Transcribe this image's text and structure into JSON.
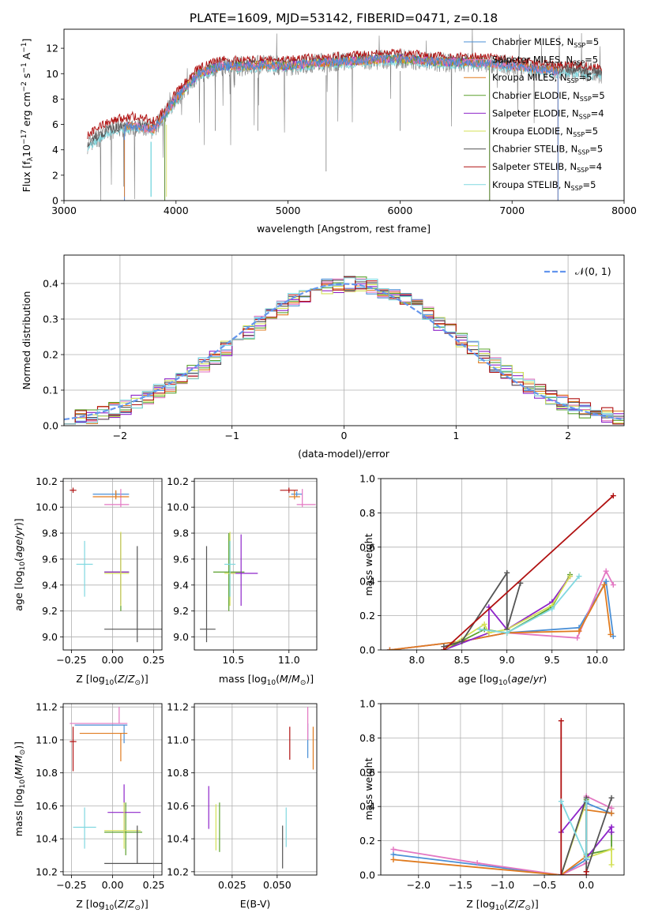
{
  "title": "PLATE=1609, MJD=53142, FIBERID=0471, z=0.18",
  "colors": {
    "Chabrier MILES": "#4a8fd6",
    "Salpeter MILES": "#e377c2",
    "Kroupa MILES": "#e07b1f",
    "Chabrier ELODIE": "#5aa02c",
    "Salpeter ELODIE": "#8e24c9",
    "Kroupa ELODIE": "#d4e157",
    "Chabrier STELIB": "#555555",
    "Salpeter STELIB": "#b01010",
    "Kroupa STELIB": "#80d8e0"
  },
  "legend_spectrum": [
    {
      "model": "Chabrier MILES",
      "lib": "Chabrier MILES, N",
      "sub": "SSP",
      "eq": "=5"
    },
    {
      "model": "Salpeter MILES",
      "lib": "Salpeter MILES, N",
      "sub": "SSP",
      "eq": "=5"
    },
    {
      "model": "Kroupa MILES",
      "lib": "Kroupa MILES, N",
      "sub": "SSP",
      "eq": "=5"
    },
    {
      "model": "Chabrier ELODIE",
      "lib": "Chabrier ELODIE, N",
      "sub": "SSP",
      "eq": "=5"
    },
    {
      "model": "Salpeter ELODIE",
      "lib": "Salpeter ELODIE, N",
      "sub": "SSP",
      "eq": "=4"
    },
    {
      "model": "Kroupa ELODIE",
      "lib": "Kroupa ELODIE, N",
      "sub": "SSP",
      "eq": "=5"
    },
    {
      "model": "Chabrier STELIB",
      "lib": "Chabrier STELIB, N",
      "sub": "SSP",
      "eq": "=5"
    },
    {
      "model": "Salpeter STELIB",
      "lib": "Salpeter STELIB, N",
      "sub": "SSP",
      "eq": "=4"
    },
    {
      "model": "Kroupa STELIB",
      "lib": "Kroupa STELIB, N",
      "sub": "SSP",
      "eq": "=5"
    }
  ],
  "chart_data": [
    {
      "id": "spectrum",
      "type": "line",
      "xlabel": "wavelength [Angstrom, rest frame]",
      "ylabel": "Flux [f",
      "xlim": [
        3000,
        8000
      ],
      "ylim": [
        0,
        13.5
      ],
      "xticks": [
        3000,
        4000,
        5000,
        6000,
        7000,
        8000
      ],
      "yticks": [
        0,
        2,
        4,
        6,
        8,
        10,
        12
      ],
      "continuum_x": [
        3200,
        3400,
        3600,
        3800,
        4000,
        4200,
        4400,
        4600,
        4800,
        5000,
        5200,
        5400,
        5600,
        5800,
        6000,
        6200,
        6400,
        6600,
        6800,
        7000,
        7200,
        7400,
        7600,
        7800
      ],
      "continuum_y": [
        4.4,
        5.5,
        5.9,
        5.6,
        8.0,
        10.0,
        10.6,
        10.6,
        10.7,
        10.6,
        10.8,
        10.9,
        11.0,
        11.1,
        11.2,
        11.0,
        10.9,
        10.9,
        10.8,
        10.6,
        10.4,
        10.2,
        10.2,
        10.0
      ]
    },
    {
      "id": "residuals",
      "type": "histogram",
      "xlabel": "(data-model)/error",
      "ylabel": "Normed distribution",
      "xlim": [
        -2.5,
        2.5
      ],
      "ylim": [
        0,
        0.48
      ],
      "xticks": [
        -2,
        -1,
        0,
        1,
        2
      ],
      "yticks": [
        0.0,
        0.1,
        0.2,
        0.3,
        0.4
      ],
      "gaussian_label": "𝒩(0, 1)",
      "gaussian_color": "#6495ed",
      "bin_width": 0.1,
      "bin_start": -2.5,
      "gauss_values": [
        0.0175,
        0.0224,
        0.0283,
        0.0355,
        0.044,
        0.054,
        0.0656,
        0.079,
        0.094,
        0.111,
        0.1295,
        0.1497,
        0.1714,
        0.1942,
        0.2179,
        0.242,
        0.266,
        0.2897,
        0.3123,
        0.3332,
        0.3521,
        0.3683,
        0.3814,
        0.391,
        0.397,
        0.3989,
        0.397,
        0.391,
        0.3814,
        0.3683,
        0.3521,
        0.3332,
        0.3123,
        0.2897,
        0.266,
        0.242,
        0.2179,
        0.1942,
        0.1714,
        0.1497,
        0.1295,
        0.111,
        0.094,
        0.079,
        0.0656,
        0.054,
        0.044,
        0.0355,
        0.0283,
        0.0224
      ]
    },
    {
      "id": "age-vs-Z",
      "type": "scatter",
      "xlabel": "Z [log",
      "ylabel": "age  [log",
      "xlim": [
        -0.3,
        0.3
      ],
      "ylim": [
        8.9,
        10.22
      ],
      "xticks": [
        -0.25,
        0.0,
        0.25
      ],
      "yticks": [
        9.0,
        9.2,
        9.4,
        9.6,
        9.8,
        10.0,
        10.2
      ],
      "points": [
        {
          "model": "Chabrier MILES",
          "x": 0.02,
          "y": 10.1,
          "xe": [
            0.14,
            0.08
          ],
          "ye": [
            0.02,
            0.02
          ]
        },
        {
          "model": "Salpeter MILES",
          "x": 0.05,
          "y": 10.02,
          "xe": [
            0.1,
            0.05
          ],
          "ye": [
            0.02,
            0.12
          ]
        },
        {
          "model": "Kroupa MILES",
          "x": 0.02,
          "y": 10.08,
          "xe": [
            0.14,
            0.08
          ],
          "ye": [
            0.02,
            0.05
          ]
        },
        {
          "model": "Chabrier ELODIE",
          "x": 0.05,
          "y": 9.5,
          "xe": [
            0.1,
            0.05
          ],
          "ye": [
            0.3,
            0.3
          ]
        },
        {
          "model": "Salpeter ELODIE",
          "x": 0.05,
          "y": 9.5,
          "xe": [
            0.1,
            0.05
          ],
          "ye": [
            0.25,
            0.3
          ]
        },
        {
          "model": "Kroupa ELODIE",
          "x": 0.05,
          "y": 9.49,
          "xe": [
            0.1,
            0.05
          ],
          "ye": [
            0.25,
            0.32
          ]
        },
        {
          "model": "Chabrier STELIB",
          "x": 0.15,
          "y": 9.06,
          "xe": [
            0.2,
            0.15
          ],
          "ye": [
            0.1,
            0.64
          ]
        },
        {
          "model": "Salpeter STELIB",
          "x": -0.24,
          "y": 10.13,
          "xe": [
            0.02,
            0.02
          ],
          "ye": [
            0.02,
            0.02
          ]
        },
        {
          "model": "Kroupa STELIB",
          "x": -0.17,
          "y": 9.56,
          "xe": [
            0.05,
            0.05
          ],
          "ye": [
            0.25,
            0.18
          ]
        }
      ]
    },
    {
      "id": "age-vs-mass",
      "type": "scatter",
      "xlabel": "mass [log",
      "ylabel": "",
      "xlim": [
        10.15,
        11.25
      ],
      "ylim": [
        8.9,
        10.22
      ],
      "xticks": [
        10.5,
        11.0
      ],
      "yticks": [
        9.0,
        9.2,
        9.4,
        9.6,
        9.8,
        10.0,
        10.2
      ],
      "points": [
        {
          "model": "Chabrier MILES",
          "x": 11.07,
          "y": 10.1,
          "xe": [
            0.05,
            0.05
          ],
          "ye": [
            0.02,
            0.02
          ]
        },
        {
          "model": "Salpeter MILES",
          "x": 11.12,
          "y": 10.02,
          "xe": [
            0.05,
            0.12
          ],
          "ye": [
            0.02,
            0.12
          ]
        },
        {
          "model": "Kroupa MILES",
          "x": 11.05,
          "y": 10.08,
          "xe": [
            0.05,
            0.05
          ],
          "ye": [
            0.02,
            0.05
          ]
        },
        {
          "model": "Chabrier ELODIE",
          "x": 10.46,
          "y": 9.5,
          "xe": [
            0.14,
            0.14
          ],
          "ye": [
            0.3,
            0.3
          ]
        },
        {
          "model": "Salpeter ELODIE",
          "x": 10.57,
          "y": 9.49,
          "xe": [
            0.1,
            0.15
          ],
          "ye": [
            0.25,
            0.3
          ]
        },
        {
          "model": "Kroupa ELODIE",
          "x": 10.47,
          "y": 9.49,
          "xe": [
            0.05,
            0.05
          ],
          "ye": [
            0.25,
            0.32
          ]
        },
        {
          "model": "Chabrier STELIB",
          "x": 10.26,
          "y": 9.06,
          "xe": [
            0.06,
            0.08
          ],
          "ye": [
            0.1,
            0.64
          ]
        },
        {
          "model": "Salpeter STELIB",
          "x": 11.0,
          "y": 10.13,
          "xe": [
            0.08,
            0.08
          ],
          "ye": [
            0.02,
            0.02
          ]
        },
        {
          "model": "Kroupa STELIB",
          "x": 10.47,
          "y": 9.56,
          "xe": [
            0.05,
            0.05
          ],
          "ye": [
            0.25,
            0.18
          ]
        }
      ]
    },
    {
      "id": "mass-weight-vs-age",
      "type": "line",
      "xlabel": "age  [log",
      "ylabel": "mass weight",
      "xlim": [
        7.6,
        10.3
      ],
      "ylim": [
        0,
        1.0
      ],
      "xticks": [
        8.0,
        8.5,
        9.0,
        9.5,
        10.0
      ],
      "yticks": [
        0.0,
        0.2,
        0.4,
        0.6,
        0.8,
        1.0
      ],
      "series": [
        {
          "model": "Chabrier MILES",
          "x": [
            7.7,
            8.5,
            9.0,
            9.8,
            10.1,
            10.18
          ],
          "y": [
            0.0,
            0.05,
            0.1,
            0.13,
            0.4,
            0.08
          ]
        },
        {
          "model": "Salpeter MILES",
          "x": [
            7.7,
            8.5,
            9.0,
            9.78,
            10.1,
            10.18
          ],
          "y": [
            0.0,
            0.05,
            0.1,
            0.07,
            0.46,
            0.38
          ]
        },
        {
          "model": "Kroupa MILES",
          "x": [
            7.7,
            8.5,
            9.0,
            9.8,
            10.08,
            10.15
          ],
          "y": [
            0.0,
            0.05,
            0.1,
            0.11,
            0.38,
            0.09
          ]
        },
        {
          "model": "Chabrier ELODIE",
          "x": [
            8.3,
            8.75,
            9.0,
            9.5,
            9.7
          ],
          "y": [
            0.0,
            0.12,
            0.1,
            0.25,
            0.44
          ]
        },
        {
          "model": "Salpeter ELODIE",
          "x": [
            8.3,
            8.8,
            8.8,
            9.0,
            9.5,
            9.7
          ],
          "y": [
            0.0,
            0.1,
            0.25,
            0.12,
            0.28,
            0.43
          ]
        },
        {
          "model": "Kroupa ELODIE",
          "x": [
            8.3,
            8.75,
            8.8,
            9.0,
            9.5,
            9.7
          ],
          "y": [
            0.0,
            0.15,
            0.1,
            0.12,
            0.26,
            0.43
          ]
        },
        {
          "model": "Chabrier STELIB",
          "x": [
            8.3,
            8.5,
            9.0,
            9.0,
            9.15
          ],
          "y": [
            0.02,
            0.05,
            0.45,
            0.12,
            0.39
          ]
        },
        {
          "model": "Salpeter STELIB",
          "x": [
            8.3,
            10.18
          ],
          "y": [
            0.0,
            0.9
          ]
        },
        {
          "model": "Kroupa STELIB",
          "x": [
            8.7,
            9.0,
            9.5,
            9.8
          ],
          "y": [
            0.12,
            0.1,
            0.24,
            0.43
          ]
        }
      ]
    },
    {
      "id": "mass-vs-Z",
      "type": "scatter",
      "xlabel": "Z [log",
      "ylabel": "mass [log",
      "xlim": [
        -0.3,
        0.3
      ],
      "ylim": [
        10.18,
        11.22
      ],
      "xticks": [
        -0.25,
        0.0,
        0.25
      ],
      "yticks": [
        10.2,
        10.4,
        10.6,
        10.8,
        11.0,
        11.2
      ],
      "points": [
        {
          "model": "Chabrier MILES",
          "x": 0.07,
          "y": 11.09,
          "xe": [
            0.3,
            0.02
          ],
          "ye": [
            0.11,
            0.0
          ]
        },
        {
          "model": "Salpeter MILES",
          "x": 0.04,
          "y": 11.1,
          "xe": [
            0.3,
            0.05
          ],
          "ye": [
            0.0,
            0.1
          ]
        },
        {
          "model": "Kroupa MILES",
          "x": 0.05,
          "y": 11.04,
          "xe": [
            0.25,
            0.04
          ],
          "ye": [
            0.17,
            0.0
          ]
        },
        {
          "model": "Chabrier ELODIE",
          "x": 0.08,
          "y": 10.44,
          "xe": [
            0.13,
            0.1
          ],
          "ye": [
            0.14,
            0.18
          ]
        },
        {
          "model": "Salpeter ELODIE",
          "x": 0.07,
          "y": 10.56,
          "xe": [
            0.1,
            0.1
          ],
          "ye": [
            0.12,
            0.17
          ]
        },
        {
          "model": "Kroupa ELODIE",
          "x": 0.07,
          "y": 10.45,
          "xe": [
            0.12,
            0.1
          ],
          "ye": [
            0.11,
            0.17
          ]
        },
        {
          "model": "Chabrier STELIB",
          "x": 0.15,
          "y": 10.25,
          "xe": [
            0.2,
            0.15
          ],
          "ye": [
            0.0,
            0.23
          ]
        },
        {
          "model": "Salpeter STELIB",
          "x": -0.24,
          "y": 10.99,
          "xe": [
            0.02,
            0.02
          ],
          "ye": [
            0.18,
            0.09
          ]
        },
        {
          "model": "Kroupa STELIB",
          "x": -0.17,
          "y": 10.47,
          "xe": [
            0.07,
            0.07
          ],
          "ye": [
            0.13,
            0.12
          ]
        }
      ]
    },
    {
      "id": "mass-vs-EBV",
      "type": "scatter",
      "xlabel": "E(B-V)",
      "ylabel": "",
      "xlim": [
        0.004,
        0.072
      ],
      "ylim": [
        10.18,
        11.22
      ],
      "xticks": [
        0.025,
        0.05
      ],
      "yticks": [
        10.2,
        10.4,
        10.6,
        10.8,
        11.0,
        11.2
      ],
      "points": [
        {
          "model": "Chabrier MILES",
          "x": 0.067,
          "y": 11.04,
          "ye": [
            0.15,
            0.06
          ]
        },
        {
          "model": "Salpeter MILES",
          "x": 0.067,
          "y": 11.1,
          "ye": [
            0.1,
            0.1
          ]
        },
        {
          "model": "Kroupa MILES",
          "x": 0.07,
          "y": 10.95,
          "ye": [
            0.13,
            0.13
          ]
        },
        {
          "model": "Chabrier ELODIE",
          "x": 0.018,
          "y": 10.47,
          "ye": [
            0.15,
            0.15
          ]
        },
        {
          "model": "Salpeter ELODIE",
          "x": 0.012,
          "y": 10.59,
          "ye": [
            0.13,
            0.13
          ]
        },
        {
          "model": "Kroupa ELODIE",
          "x": 0.016,
          "y": 10.47,
          "ye": [
            0.14,
            0.14
          ]
        },
        {
          "model": "Chabrier STELIB",
          "x": 0.053,
          "y": 10.35,
          "ye": [
            0.13,
            0.13
          ]
        },
        {
          "model": "Salpeter STELIB",
          "x": 0.057,
          "y": 10.98,
          "ye": [
            0.1,
            0.1
          ]
        },
        {
          "model": "Kroupa STELIB",
          "x": 0.055,
          "y": 10.47,
          "ye": [
            0.12,
            0.12
          ]
        }
      ]
    },
    {
      "id": "mass-weight-vs-Z",
      "type": "line",
      "xlabel": "Z [log",
      "ylabel": "mass weight",
      "xlim": [
        -2.45,
        0.45
      ],
      "ylim": [
        0,
        1.0
      ],
      "xticks": [
        -2.0,
        -1.5,
        -1.0,
        -0.5,
        0.0
      ],
      "yticks": [
        0.0,
        0.2,
        0.4,
        0.6,
        0.8,
        1.0
      ],
      "series": [
        {
          "model": "Chabrier MILES",
          "x": [
            -2.3,
            -0.3,
            0.0,
            0.0,
            0.3
          ],
          "y": [
            0.12,
            0.0,
            0.09,
            0.42,
            0.36
          ]
        },
        {
          "model": "Salpeter MILES",
          "x": [
            -2.3,
            -1.3,
            -0.3,
            0.0,
            0.0,
            0.3
          ],
          "y": [
            0.15,
            0.07,
            0.0,
            0.07,
            0.46,
            0.39
          ]
        },
        {
          "model": "Kroupa MILES",
          "x": [
            -2.3,
            -0.3,
            0.0,
            0.0,
            0.3
          ],
          "y": [
            0.09,
            0.0,
            0.11,
            0.38,
            0.36
          ]
        },
        {
          "model": "Chabrier ELODIE",
          "x": [
            -0.3,
            0.0,
            0.0,
            0.3,
            0.3
          ],
          "y": [
            0.0,
            0.44,
            0.12,
            0.15,
            0.25
          ]
        },
        {
          "model": "Salpeter ELODIE",
          "x": [
            -0.3,
            0.0,
            0.0,
            0.3,
            0.3
          ],
          "y": [
            0.25,
            0.43,
            0.1,
            0.28,
            0.25
          ]
        },
        {
          "model": "Kroupa ELODIE",
          "x": [
            -0.3,
            0.0,
            0.0,
            0.3,
            0.3
          ],
          "y": [
            0.0,
            0.43,
            0.1,
            0.15,
            0.06
          ]
        },
        {
          "model": "Chabrier STELIB",
          "x": [
            -0.3,
            0.0,
            0.0,
            0.3
          ],
          "y": [
            0.0,
            0.45,
            0.02,
            0.45
          ]
        },
        {
          "model": "Salpeter STELIB",
          "x": [
            -0.3,
            -0.3,
            0.0,
            0.0
          ],
          "y": [
            0.9,
            0.0,
            0.0,
            0.02
          ]
        },
        {
          "model": "Kroupa STELIB",
          "x": [
            -0.3,
            0.0,
            0.0
          ],
          "y": [
            0.43,
            0.1,
            0.43
          ]
        }
      ]
    }
  ]
}
